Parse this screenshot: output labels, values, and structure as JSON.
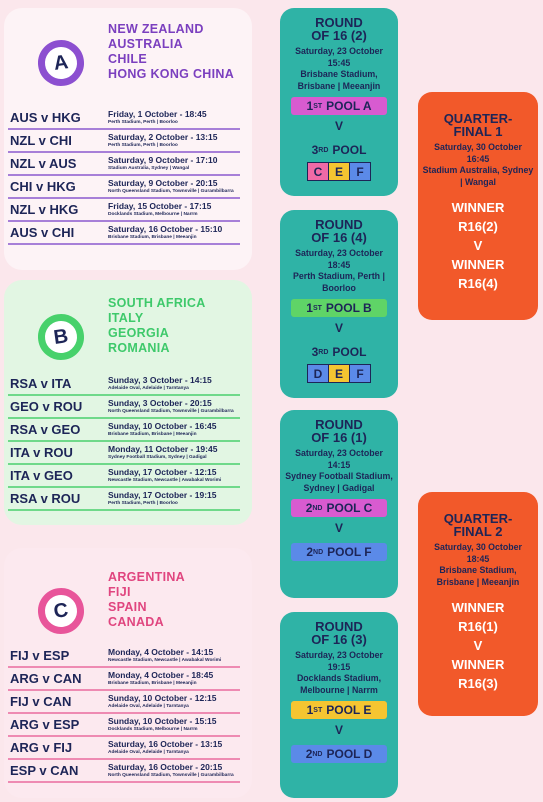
{
  "pools": [
    {
      "letter": "A",
      "teams": [
        "NEW ZEALAND",
        "AUSTRALIA",
        "CHILE",
        "HONG KONG CHINA"
      ],
      "matches": [
        {
          "fixture": "AUS v HKG",
          "date": "Friday, 1 October - 18:45",
          "venue": "Perth Stadium, Perth | Boorloo"
        },
        {
          "fixture": "NZL v CHI",
          "date": "Saturday, 2 October - 13:15",
          "venue": "Perth Stadium, Perth | Boorloo"
        },
        {
          "fixture": "NZL v AUS",
          "date": "Saturday, 9 October - 17:10",
          "venue": "Stadium Australia, Sydney | Wangal"
        },
        {
          "fixture": "CHI v HKG",
          "date": "Saturday, 9 October - 20:15",
          "venue": "North Queensland Stadium, Townsville | Gurambilbarra"
        },
        {
          "fixture": "NZL v HKG",
          "date": "Friday, 15 October - 17:15",
          "venue": "Docklands Stadium, Melbourne | Narrm"
        },
        {
          "fixture": "AUS v CHI",
          "date": "Saturday, 16 October - 15:10",
          "venue": "Brisbane Stadium, Brisbane | Meeanjin"
        }
      ]
    },
    {
      "letter": "B",
      "teams": [
        "SOUTH AFRICA",
        "ITALY",
        "GEORGIA",
        "ROMANIA"
      ],
      "matches": [
        {
          "fixture": "RSA v ITA",
          "date": "Sunday, 3 October - 14:15",
          "venue": "Adelaide Oval, Adelaide | Tarntanya"
        },
        {
          "fixture": "GEO v ROU",
          "date": "Sunday, 3 October - 20:15",
          "venue": "North Queensland Stadium, Townsville | Gurambilbarra"
        },
        {
          "fixture": "RSA v GEO",
          "date": "Sunday, 10 October - 16:45",
          "venue": "Brisbane Stadium, Brisbane | Meeanjin"
        },
        {
          "fixture": "ITA v ROU",
          "date": "Monday, 11 October - 19:45",
          "venue": "Sydney Football Stadium, Sydney | Gadigal"
        },
        {
          "fixture": "ITA v GEO",
          "date": "Sunday, 17 October - 12:15",
          "venue": "Newcastle Stadium, Newcastle | Awabakal Worimi"
        },
        {
          "fixture": "RSA v ROU",
          "date": "Sunday, 17 October - 19:15",
          "venue": "Perth Stadium, Perth | Boorloo"
        }
      ]
    },
    {
      "letter": "C",
      "teams": [
        "ARGENTINA",
        "FIJI",
        "SPAIN",
        "CANADA"
      ],
      "matches": [
        {
          "fixture": "FIJ v ESP",
          "date": "Monday, 4 October - 14:15",
          "venue": "Newcastle Stadium, Newcastle | Awabakal Worimi"
        },
        {
          "fixture": "ARG v CAN",
          "date": "Monday, 4 October - 18:45",
          "venue": "Brisbane Stadium, Brisbane | Meeanjin"
        },
        {
          "fixture": "FIJ v CAN",
          "date": "Sunday, 10 October - 12:15",
          "venue": "Adelaide Oval, Adelaide | Tarntanya"
        },
        {
          "fixture": "ARG v ESP",
          "date": "Sunday, 10 October - 15:15",
          "venue": "Docklands Stadium, Melbourne | Narrm"
        },
        {
          "fixture": "ARG v FIJ",
          "date": "Saturday, 16 October - 13:15",
          "venue": "Adelaide Oval, Adelaide | Tarntanya"
        },
        {
          "fixture": "ESP v CAN",
          "date": "Saturday, 16 October - 20:15",
          "venue": "North Queensland Stadium, Townsville | Gurambilbarra"
        }
      ]
    }
  ],
  "rounds": [
    {
      "title": [
        "ROUND",
        "OF 16 (2)"
      ],
      "date": "Saturday, 23 October",
      "time": "15:45",
      "venue": "Brisbane Stadium, Brisbane | Meeanjin",
      "slot1": {
        "ordinal": "1",
        "suffix": "ST",
        "text": "POOL A"
      },
      "vs": "V",
      "slot2": {
        "ordinal": "3",
        "suffix": "RD",
        "text": "POOL",
        "options": [
          "C",
          "E",
          "F"
        ]
      }
    },
    {
      "title": [
        "ROUND",
        "OF 16 (4)"
      ],
      "date": "Saturday, 23 October",
      "time": "18:45",
      "venue": "Perth Stadium, Perth | Boorloo",
      "slot1": {
        "ordinal": "1",
        "suffix": "ST",
        "text": "POOL B"
      },
      "vs": "V",
      "slot2": {
        "ordinal": "3",
        "suffix": "RD",
        "text": "POOL",
        "options": [
          "D",
          "E",
          "F"
        ]
      }
    },
    {
      "title": [
        "ROUND",
        "OF 16 (1)"
      ],
      "date": "Saturday, 23 October",
      "time": "14:15",
      "venue": "Sydney Football Stadium, Sydney | Gadigal",
      "slot1": {
        "ordinal": "2",
        "suffix": "ND",
        "text": "POOL C"
      },
      "vs": "V",
      "slot2": {
        "ordinal": "2",
        "suffix": "ND",
        "text": "POOL F"
      }
    },
    {
      "title": [
        "ROUND",
        "OF 16 (3)"
      ],
      "date": "Saturday, 23 October",
      "time": "19:15",
      "venue": "Docklands Stadium, Melbourne | Narrm",
      "slot1": {
        "ordinal": "1",
        "suffix": "ST",
        "text": "POOL E"
      },
      "vs": "V",
      "slot2": {
        "ordinal": "2",
        "suffix": "ND",
        "text": "POOL D"
      }
    }
  ],
  "quarter_finals": [
    {
      "title": [
        "QUARTER-",
        "FINAL 1"
      ],
      "date": "Saturday, 30 October",
      "time": "16:45",
      "venue": "Stadium Australia, Sydney | Wangal",
      "team1": "WINNER R16(2)",
      "vs": "V",
      "team2": "WINNER R16(4)"
    },
    {
      "title": [
        "QUARTER-",
        "FINAL 2"
      ],
      "date": "Saturday, 30 October",
      "time": "18:45",
      "venue": "Brisbane Stadium, Brisbane | Meeanjin",
      "team1": "WINNER R16(1)",
      "vs": "V",
      "team2": "WINNER R16(3)"
    }
  ]
}
